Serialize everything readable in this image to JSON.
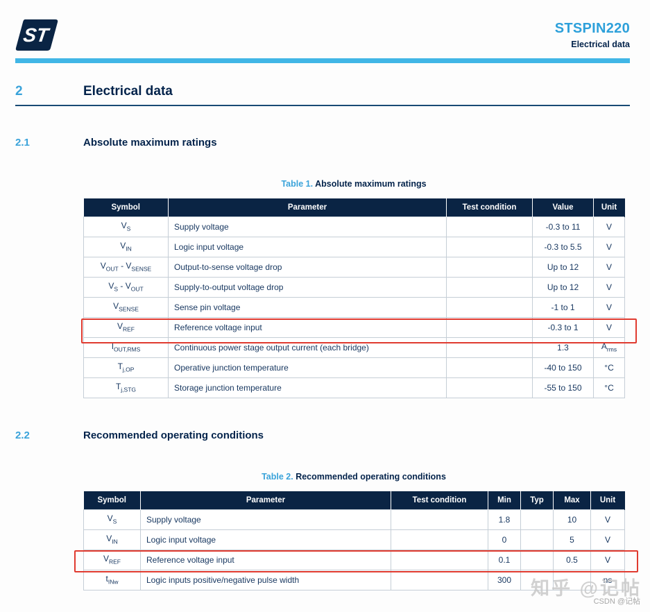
{
  "header": {
    "product": "STSPIN220",
    "subtitle": "Electrical data",
    "logo_icon": "st-logo"
  },
  "sections": [
    {
      "number": "2",
      "title": "Electrical data"
    },
    {
      "number": "2.1",
      "title": "Absolute maximum ratings"
    },
    {
      "number": "2.2",
      "title": "Recommended operating conditions"
    }
  ],
  "tables": [
    {
      "caption_label": "Table 1.",
      "caption_title": "Absolute maximum ratings",
      "columns": [
        "Symbol",
        "Parameter",
        "Test condition",
        "Value",
        "Unit"
      ],
      "rows": [
        {
          "highlight": false,
          "cells": [
            [
              [
                "V"
              ],
              [
                "S",
                1
              ]
            ],
            [
              [
                "Supply voltage"
              ]
            ],
            [
              [
                ""
              ]
            ],
            [
              [
                "-0.3 to 11"
              ]
            ],
            [
              [
                "V"
              ]
            ]
          ]
        },
        {
          "highlight": false,
          "cells": [
            [
              [
                "V"
              ],
              [
                "IN",
                1
              ]
            ],
            [
              [
                "Logic input voltage"
              ]
            ],
            [
              [
                ""
              ]
            ],
            [
              [
                "-0.3 to 5.5"
              ]
            ],
            [
              [
                "V"
              ]
            ]
          ]
        },
        {
          "highlight": false,
          "cells": [
            [
              [
                "V"
              ],
              [
                "OUT",
                1
              ],
              [
                " - V"
              ],
              [
                "SENSE",
                1
              ]
            ],
            [
              [
                "Output-to-sense voltage drop"
              ]
            ],
            [
              [
                ""
              ]
            ],
            [
              [
                "Up to 12"
              ]
            ],
            [
              [
                "V"
              ]
            ]
          ]
        },
        {
          "highlight": false,
          "cells": [
            [
              [
                "V"
              ],
              [
                "S",
                1
              ],
              [
                " - V"
              ],
              [
                "OUT",
                1
              ]
            ],
            [
              [
                "Supply-to-output voltage drop"
              ]
            ],
            [
              [
                ""
              ]
            ],
            [
              [
                "Up to 12"
              ]
            ],
            [
              [
                "V"
              ]
            ]
          ]
        },
        {
          "highlight": false,
          "cells": [
            [
              [
                "V"
              ],
              [
                "SENSE",
                1
              ]
            ],
            [
              [
                "Sense pin voltage"
              ]
            ],
            [
              [
                ""
              ]
            ],
            [
              [
                "-1 to 1"
              ]
            ],
            [
              [
                "V"
              ]
            ]
          ]
        },
        {
          "highlight": true,
          "cells": [
            [
              [
                "V"
              ],
              [
                "REF",
                1
              ]
            ],
            [
              [
                "Reference voltage input"
              ]
            ],
            [
              [
                ""
              ]
            ],
            [
              [
                "-0.3 to 1"
              ]
            ],
            [
              [
                "V"
              ]
            ]
          ]
        },
        {
          "highlight": false,
          "cells": [
            [
              [
                "I"
              ],
              [
                "OUT,RMS",
                1
              ]
            ],
            [
              [
                "Continuous power stage output current (each bridge)"
              ]
            ],
            [
              [
                ""
              ]
            ],
            [
              [
                "1.3"
              ]
            ],
            [
              [
                "A"
              ],
              [
                "rms",
                1
              ]
            ]
          ]
        },
        {
          "highlight": false,
          "cells": [
            [
              [
                "T"
              ],
              [
                "j,OP",
                1
              ]
            ],
            [
              [
                "Operative junction temperature"
              ]
            ],
            [
              [
                ""
              ]
            ],
            [
              [
                "-40 to 150"
              ]
            ],
            [
              [
                "°C"
              ]
            ]
          ]
        },
        {
          "highlight": false,
          "cells": [
            [
              [
                "T"
              ],
              [
                "j,STG",
                1
              ]
            ],
            [
              [
                "Storage junction temperature"
              ]
            ],
            [
              [
                ""
              ]
            ],
            [
              [
                "-55 to 150"
              ]
            ],
            [
              [
                "°C"
              ]
            ]
          ]
        }
      ]
    },
    {
      "caption_label": "Table 2.",
      "caption_title": "Recommended operating conditions",
      "columns": [
        "Symbol",
        "Parameter",
        "Test condition",
        "Min",
        "Typ",
        "Max",
        "Unit"
      ],
      "rows": [
        {
          "highlight": false,
          "cells": [
            [
              [
                "V"
              ],
              [
                "S",
                1
              ]
            ],
            [
              [
                "Supply voltage"
              ]
            ],
            [
              [
                ""
              ]
            ],
            [
              [
                "1.8"
              ]
            ],
            [
              [
                ""
              ]
            ],
            [
              [
                "10"
              ]
            ],
            [
              [
                "V"
              ]
            ]
          ]
        },
        {
          "highlight": false,
          "cells": [
            [
              [
                "V"
              ],
              [
                "IN",
                1
              ]
            ],
            [
              [
                "Logic input voltage"
              ]
            ],
            [
              [
                ""
              ]
            ],
            [
              [
                "0"
              ]
            ],
            [
              [
                ""
              ]
            ],
            [
              [
                "5"
              ]
            ],
            [
              [
                "V"
              ]
            ]
          ]
        },
        {
          "highlight": true,
          "cells": [
            [
              [
                "V"
              ],
              [
                "REF",
                1
              ]
            ],
            [
              [
                "Reference voltage input"
              ]
            ],
            [
              [
                ""
              ]
            ],
            [
              [
                "0.1"
              ]
            ],
            [
              [
                ""
              ]
            ],
            [
              [
                "0.5"
              ]
            ],
            [
              [
                "V"
              ]
            ]
          ]
        },
        {
          "highlight": false,
          "cells": [
            [
              [
                "t"
              ],
              [
                "INw",
                1
              ]
            ],
            [
              [
                "Logic inputs positive/negative pulse width"
              ]
            ],
            [
              [
                ""
              ]
            ],
            [
              [
                "300"
              ]
            ],
            [
              [
                ""
              ]
            ],
            [
              [
                ""
              ]
            ],
            [
              [
                "ns"
              ]
            ]
          ]
        }
      ]
    }
  ],
  "watermarks": {
    "large": "知乎 @记帖",
    "small": "CSDN @记帖"
  },
  "colors": {
    "dark_navy": "#03234b",
    "header_row_bg": "#0a2444",
    "light_blue_bar": "#41b6e6",
    "accent_blue": "#3aa3da",
    "product_blue": "#2da0da",
    "table_text": "#16365f",
    "highlight_red": "#e03a2f"
  }
}
